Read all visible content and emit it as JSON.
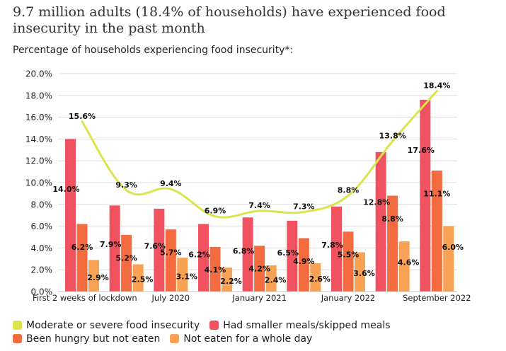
{
  "header": {
    "title": "9.7 million adults (18.4% of households) have experienced food insecurity in the past month",
    "subtitle": "Percentage of households experiencing food insecurity*:"
  },
  "colors": {
    "moderate": "#dde34d",
    "smaller": "#f0525f",
    "hungry": "#f36b3f",
    "whole_day": "#f7a254"
  },
  "legend": {
    "moderate": "Moderate or severe food insecurity",
    "smaller": "Had smaller meals/skipped meals",
    "hungry": "Been hungry but not eaten",
    "whole_day": "Not eaten for a whole day"
  },
  "chart_data": {
    "type": "bar",
    "title": "Percentage of households experiencing food insecurity*:",
    "ylim": [
      0,
      20
    ],
    "yticks": [
      "0.0%",
      "2.0%",
      "4.0%",
      "6.0%",
      "8.0%",
      "10.0%",
      "12.0%",
      "14.0%",
      "16.0%",
      "18.0%",
      "20.0%"
    ],
    "x_tick_labels": [
      {
        "index": 0,
        "label": "First 2 weeks of lockdown"
      },
      {
        "index": 2,
        "label": "July 2020"
      },
      {
        "index": 4,
        "label": "January 2021"
      },
      {
        "index": 6,
        "label": "January 2022"
      },
      {
        "index": 8,
        "label": "September 2022"
      }
    ],
    "series": [
      {
        "name": "Moderate or severe food insecurity",
        "type": "line",
        "values": [
          15.6,
          9.3,
          9.4,
          6.9,
          7.4,
          7.3,
          8.8,
          13.8,
          18.4
        ],
        "labels": [
          "15.6%",
          "9.3%",
          "9.4%",
          "6.9%",
          "7.4%",
          "7.3%",
          "8.8%",
          "13.8%",
          "18.4%"
        ]
      },
      {
        "name": "Had smaller meals/skipped meals",
        "type": "bar",
        "values": [
          14.0,
          7.9,
          7.6,
          6.2,
          6.8,
          6.5,
          7.8,
          12.8,
          17.6
        ],
        "labels": [
          "14.0%",
          "7.9%",
          "7.6%",
          "6.2%",
          "6.8%",
          "6.5%",
          "7.8%",
          "12.8%",
          "17.6%"
        ]
      },
      {
        "name": "Been hungry but not eaten",
        "type": "bar",
        "values": [
          6.2,
          5.2,
          5.7,
          4.1,
          4.2,
          4.9,
          5.5,
          8.8,
          11.1
        ],
        "labels": [
          "6.2%",
          "5.2%",
          "5.7%",
          "4.1%",
          "4.2%",
          "4.9%",
          "5.5%",
          "8.8%",
          "11.1%"
        ]
      },
      {
        "name": "Not eaten for a whole day",
        "type": "bar",
        "values": [
          2.9,
          2.5,
          3.1,
          2.2,
          2.4,
          2.6,
          3.6,
          4.6,
          6.0
        ],
        "labels": [
          "2.9%",
          "2.5%",
          "3.1%",
          "2.2%",
          "2.4%",
          "2.6%",
          "3.6%",
          "4.6%",
          "6.0%"
        ]
      }
    ]
  }
}
